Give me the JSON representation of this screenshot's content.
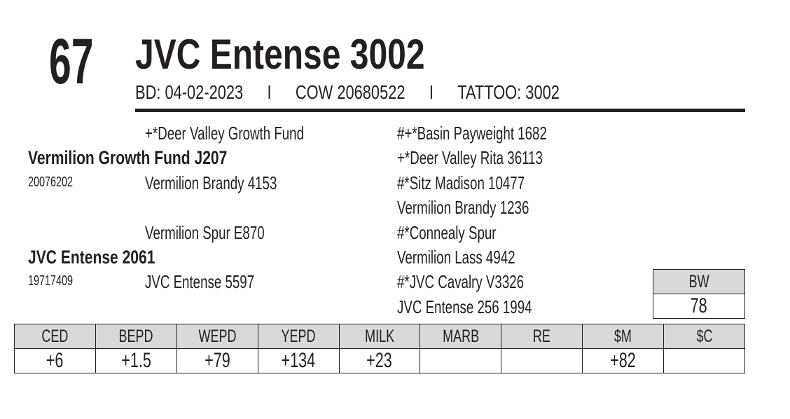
{
  "lot_number": "67",
  "animal_name": "JVC Entense 3002",
  "info": {
    "birth_date": "BD: 04-02-2023",
    "separator": "I",
    "type": "COW 20680522",
    "tattoo": "TATTOO: 3002"
  },
  "pedigree": {
    "sire": {
      "name": "Vermilion Growth Fund J207",
      "reg": "20076202",
      "sire": "+*Deer Valley Growth Fund",
      "dam": "Vermilion Brandy 4153",
      "ss": "#+*Basin Payweight 1682",
      "sd": "+*Deer Valley Rita 36113",
      "ds": "#*Sitz Madison 10477",
      "dd": "Vermilion Brandy 1236"
    },
    "dam": {
      "name": "JVC Entense 2061",
      "reg": "19717409",
      "sire": "Vermilion Spur E870",
      "dam": "JVC Entense 5597",
      "ss": "#*Connealy Spur",
      "sd": "Vermilion Lass 4942",
      "ds": "#*JVC Cavalry V3326",
      "dd": "JVC Entense 256 1994"
    }
  },
  "bw": {
    "label": "BW",
    "value": "78"
  },
  "epds": {
    "headers": [
      "CED",
      "BEPD",
      "WEPD",
      "YEPD",
      "MILK",
      "MARB",
      "RE",
      "$M",
      "$C"
    ],
    "values": [
      "+6",
      "+1.5",
      "+79",
      "+134",
      "+23",
      "",
      "",
      "+82",
      ""
    ]
  }
}
